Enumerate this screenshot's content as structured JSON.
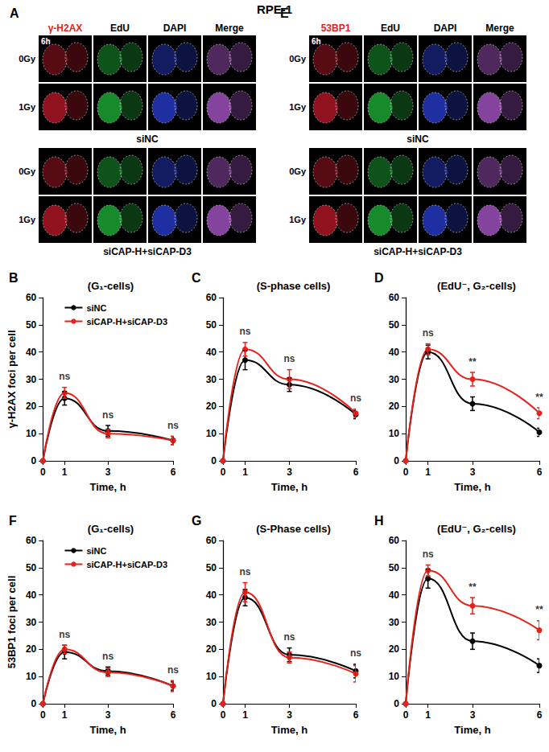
{
  "title": "RPE-1",
  "image_panels": [
    {
      "letter": "A",
      "channels": [
        {
          "label": "γ-H2AX",
          "color": "#e8221b"
        },
        {
          "label": "EdU"
        },
        {
          "label": "DAPI"
        },
        {
          "label": "Merge"
        }
      ],
      "time": "6h",
      "groups": [
        {
          "name": "siNC",
          "rows": [
            "0Gy",
            "1Gy"
          ]
        },
        {
          "name": "siCAP-H+siCAP-D3",
          "rows": [
            "0Gy",
            "1Gy"
          ]
        }
      ]
    },
    {
      "letter": "E",
      "channels": [
        {
          "label": "53BP1",
          "color": "#e8221b"
        },
        {
          "label": "EdU"
        },
        {
          "label": "DAPI"
        },
        {
          "label": "Merge"
        }
      ],
      "time": "6h",
      "groups": [
        {
          "name": "siNC",
          "rows": [
            "0Gy",
            "1Gy"
          ]
        },
        {
          "name": "siCAP-H+siCAP-D3",
          "rows": [
            "0Gy",
            "1Gy"
          ]
        }
      ]
    }
  ],
  "chart_data": [
    {
      "letter": "B",
      "type": "line",
      "title": "(G₁-cells)",
      "x_label": "Time, h",
      "y_label": "γ-H2AX foci per cell",
      "xlim": [
        0,
        6
      ],
      "xticks": [
        0,
        1,
        3,
        6
      ],
      "ylim": [
        0,
        60
      ],
      "yticks": [
        0,
        10,
        20,
        30,
        40,
        50,
        60
      ],
      "grid": false,
      "legend": "top-right",
      "marker": "circle",
      "x": [
        0,
        1,
        3,
        6
      ],
      "series": [
        {
          "name": "siNC",
          "color": "#000000",
          "values": [
            0,
            23,
            11,
            7.5
          ],
          "errors": [
            0,
            2.5,
            2,
            1.5
          ]
        },
        {
          "name": "siCAP-H+siCAP-D3",
          "color": "#e8221b",
          "values": [
            0,
            25,
            10,
            7.5
          ],
          "errors": [
            0,
            2,
            1.5,
            1.5
          ]
        }
      ],
      "annotations": [
        {
          "x": 1,
          "text": "ns"
        },
        {
          "x": 3,
          "text": "ns"
        },
        {
          "x": 6,
          "text": "ns"
        }
      ]
    },
    {
      "letter": "C",
      "type": "line",
      "title": "(S-phase cells)",
      "x_label": "Time, h",
      "xlim": [
        0,
        6
      ],
      "xticks": [
        0,
        1,
        3,
        6
      ],
      "ylim": [
        0,
        60
      ],
      "yticks": [
        0,
        10,
        20,
        30,
        40,
        50,
        60
      ],
      "grid": false,
      "marker": "circle",
      "x": [
        0,
        1,
        3,
        6
      ],
      "series": [
        {
          "name": "siNC",
          "color": "#000000",
          "values": [
            0,
            37,
            28,
            17
          ],
          "errors": [
            0,
            3.5,
            2.5,
            1.5
          ]
        },
        {
          "name": "siCAP-H+siCAP-D3",
          "color": "#e8221b",
          "values": [
            0,
            41,
            30,
            17.5
          ],
          "errors": [
            0,
            2.5,
            3.5,
            1.5
          ]
        }
      ],
      "annotations": [
        {
          "x": 1,
          "text": "ns"
        },
        {
          "x": 3,
          "text": "ns"
        },
        {
          "x": 6,
          "text": "ns"
        }
      ]
    },
    {
      "letter": "D",
      "type": "line",
      "title": "(EdU⁻, G₂-cells)",
      "x_label": "Time, h",
      "xlim": [
        0,
        6
      ],
      "xticks": [
        0,
        1,
        3,
        6
      ],
      "ylim": [
        0,
        60
      ],
      "yticks": [
        0,
        10,
        20,
        30,
        40,
        50,
        60
      ],
      "grid": false,
      "marker": "circle",
      "x": [
        0,
        1,
        3,
        6
      ],
      "series": [
        {
          "name": "siNC",
          "color": "#000000",
          "values": [
            0,
            40,
            21,
            10.5
          ],
          "errors": [
            0,
            2.5,
            2.5,
            1.5
          ]
        },
        {
          "name": "siCAP-H+siCAP-D3",
          "color": "#e8221b",
          "values": [
            0,
            41,
            30,
            17.5
          ],
          "errors": [
            0,
            2,
            2.5,
            2
          ]
        }
      ],
      "annotations": [
        {
          "x": 1,
          "text": "ns"
        },
        {
          "x": 3,
          "text": "**"
        },
        {
          "x": 6,
          "text": "**"
        }
      ]
    },
    {
      "letter": "F",
      "type": "line",
      "title": "(G₁-cells)",
      "x_label": "Time, h",
      "y_label": "53BP1 foci per cell",
      "xlim": [
        0,
        6
      ],
      "xticks": [
        0,
        1,
        3,
        6
      ],
      "ylim": [
        0,
        60
      ],
      "yticks": [
        0,
        10,
        20,
        30,
        40,
        50,
        60
      ],
      "grid": false,
      "legend": "top-right",
      "marker": "circle",
      "x": [
        0,
        1,
        3,
        6
      ],
      "series": [
        {
          "name": "siNC",
          "color": "#000000",
          "values": [
            0,
            19,
            12,
            6.5
          ],
          "errors": [
            0,
            2.5,
            1.5,
            1.5
          ]
        },
        {
          "name": "siCAP-H+siCAP-D3",
          "color": "#e8221b",
          "values": [
            0,
            20,
            11.5,
            6.5
          ],
          "errors": [
            0,
            1.5,
            1.5,
            2
          ]
        }
      ],
      "annotations": [
        {
          "x": 1,
          "text": "ns"
        },
        {
          "x": 3,
          "text": "ns"
        },
        {
          "x": 6,
          "text": "ns"
        }
      ]
    },
    {
      "letter": "G",
      "type": "line",
      "title": "(S-Phase cells)",
      "x_label": "Time, h",
      "xlim": [
        0,
        6
      ],
      "xticks": [
        0,
        1,
        3,
        6
      ],
      "ylim": [
        0,
        60
      ],
      "yticks": [
        0,
        10,
        20,
        30,
        40,
        50,
        60
      ],
      "grid": false,
      "marker": "circle",
      "x": [
        0,
        1,
        3,
        6
      ],
      "series": [
        {
          "name": "siNC",
          "color": "#000000",
          "values": [
            0,
            39,
            18,
            12
          ],
          "errors": [
            0,
            3,
            2.5,
            2.5
          ]
        },
        {
          "name": "siCAP-H+siCAP-D3",
          "color": "#e8221b",
          "values": [
            0,
            41,
            17,
            11
          ],
          "errors": [
            0,
            3.5,
            2,
            3
          ]
        }
      ],
      "annotations": [
        {
          "x": 1,
          "text": "ns"
        },
        {
          "x": 3,
          "text": "ns"
        },
        {
          "x": 6,
          "text": "ns"
        }
      ]
    },
    {
      "letter": "H",
      "type": "line",
      "title": "(EdU⁻, G₂-cells)",
      "x_label": "Time, h",
      "xlim": [
        0,
        6
      ],
      "xticks": [
        0,
        1,
        3,
        6
      ],
      "ylim": [
        0,
        60
      ],
      "yticks": [
        0,
        10,
        20,
        30,
        40,
        50,
        60
      ],
      "grid": false,
      "marker": "circle",
      "x": [
        0,
        1,
        3,
        6
      ],
      "series": [
        {
          "name": "siNC",
          "color": "#000000",
          "values": [
            0,
            46,
            23,
            14
          ],
          "errors": [
            0,
            3.5,
            3,
            2.5
          ]
        },
        {
          "name": "siCAP-H+siCAP-D3",
          "color": "#e8221b",
          "values": [
            0,
            49,
            36,
            27
          ],
          "errors": [
            0,
            2,
            3,
            3.5
          ]
        }
      ],
      "annotations": [
        {
          "x": 1,
          "text": "ns"
        },
        {
          "x": 3,
          "text": "**"
        },
        {
          "x": 6,
          "text": "**"
        }
      ]
    }
  ]
}
